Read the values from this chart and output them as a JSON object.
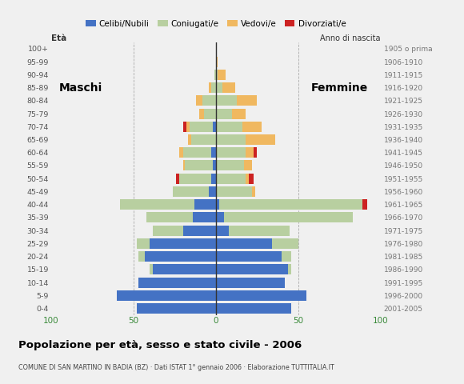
{
  "age_groups": [
    "0-4",
    "5-9",
    "10-14",
    "15-19",
    "20-24",
    "25-29",
    "30-34",
    "35-39",
    "40-44",
    "45-49",
    "50-54",
    "55-59",
    "60-64",
    "65-69",
    "70-74",
    "75-79",
    "80-84",
    "85-89",
    "90-94",
    "95-99",
    "100+"
  ],
  "birth_years": [
    "2001-2005",
    "1996-2000",
    "1991-1995",
    "1986-1990",
    "1981-1985",
    "1976-1980",
    "1971-1975",
    "1966-1970",
    "1961-1965",
    "1956-1960",
    "1951-1955",
    "1946-1950",
    "1941-1945",
    "1936-1940",
    "1931-1935",
    "1926-1930",
    "1921-1925",
    "1916-1920",
    "1911-1915",
    "1906-1910",
    "1905 o prima"
  ],
  "male_celibi": [
    48,
    60,
    47,
    38,
    43,
    40,
    20,
    14,
    13,
    4,
    3,
    2,
    3,
    0,
    2,
    0,
    0,
    0,
    0,
    0,
    0
  ],
  "male_coniugati": [
    0,
    0,
    0,
    2,
    4,
    8,
    18,
    28,
    45,
    22,
    19,
    17,
    17,
    15,
    14,
    7,
    8,
    3,
    1,
    0,
    0
  ],
  "male_vedovi": [
    0,
    0,
    0,
    0,
    0,
    0,
    0,
    0,
    0,
    0,
    0,
    1,
    2,
    2,
    2,
    3,
    4,
    1,
    0,
    0,
    0
  ],
  "male_divorziati": [
    0,
    0,
    0,
    0,
    0,
    0,
    0,
    0,
    0,
    0,
    2,
    0,
    0,
    0,
    2,
    0,
    0,
    0,
    0,
    0,
    0
  ],
  "female_nubili": [
    46,
    55,
    42,
    44,
    40,
    34,
    8,
    5,
    2,
    0,
    0,
    0,
    0,
    0,
    0,
    0,
    0,
    0,
    0,
    0,
    0
  ],
  "female_coniugate": [
    0,
    0,
    0,
    2,
    6,
    16,
    37,
    78,
    87,
    22,
    18,
    17,
    18,
    18,
    16,
    10,
    13,
    4,
    1,
    0,
    0
  ],
  "female_vedove": [
    0,
    0,
    0,
    0,
    0,
    0,
    0,
    0,
    0,
    2,
    2,
    5,
    5,
    18,
    12,
    8,
    12,
    8,
    5,
    1,
    0
  ],
  "female_divorziate": [
    0,
    0,
    0,
    0,
    0,
    0,
    0,
    0,
    3,
    0,
    3,
    0,
    2,
    0,
    0,
    0,
    0,
    0,
    0,
    0,
    0
  ],
  "colors_celibi": "#4472c4",
  "colors_coniugati": "#b8cfa0",
  "colors_vedovi": "#f0b860",
  "colors_divorziati": "#cc2222",
  "title": "Popolazione per età, sesso e stato civile - 2006",
  "subtitle": "COMUNE DI SAN MARTINO IN BADIA (BZ) · Dati ISTAT 1° gennaio 2006 · Elaborazione TUTTITALIA.IT",
  "xlim": 100,
  "bg_color": "#f0f0f0",
  "legend_labels": [
    "Celibi/Nubili",
    "Coniugati/e",
    "Vedovi/e",
    "Divorziati/e"
  ]
}
